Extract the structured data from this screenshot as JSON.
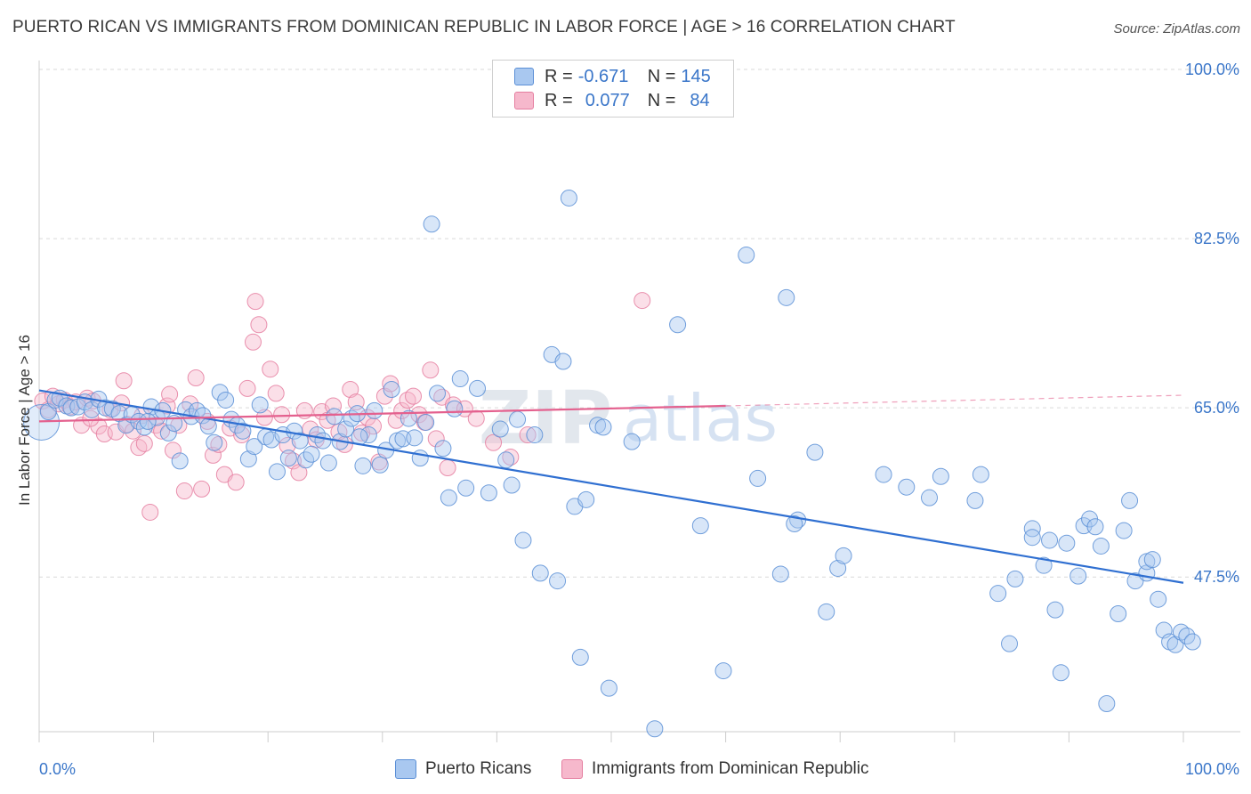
{
  "title": "PUERTO RICAN VS IMMIGRANTS FROM DOMINICAN REPUBLIC IN LABOR FORCE | AGE > 16 CORRELATION CHART",
  "source": "Source: ZipAtlas.com",
  "watermark": {
    "zip": "ZIP",
    "atlas": "atlas"
  },
  "colors": {
    "blue_fill": "#a9c8f0",
    "blue_stroke": "#5b8fd6",
    "blue_line": "#2f6fd1",
    "pink_fill": "#f6b8cc",
    "pink_stroke": "#e57ea0",
    "pink_line": "#e4608e",
    "axis_text": "#3a76c9",
    "grid": "#d9d9d9"
  },
  "legend": {
    "rows": [
      {
        "r_label": "R =",
        "r_value": "-0.671",
        "n_label": "N =",
        "n_value": "145",
        "color": "blue"
      },
      {
        "r_label": "R =",
        "r_value": "0.077",
        "n_label": "N =",
        "n_value": "84",
        "color": "pink"
      }
    ]
  },
  "chart_data": {
    "type": "scatter",
    "xlabel": "",
    "ylabel": "In Labor Force | Age > 16",
    "xlim": [
      0,
      100
    ],
    "ylim": [
      31.5,
      100
    ],
    "x_tick_labels": [
      "0.0%",
      "100.0%"
    ],
    "y_tick_labels": [
      "100.0%",
      "82.5%",
      "65.0%",
      "47.5%"
    ],
    "y_ticks": [
      100,
      82.5,
      65,
      47.5
    ],
    "grid": "horizontal dashed",
    "series": [
      {
        "name": "Puerto Ricans",
        "color": "blue",
        "trend": {
          "x": [
            0,
            100
          ],
          "y": [
            66.8,
            46.9
          ],
          "dashed_from": null
        },
        "points": [
          [
            0.2,
            63.5
          ],
          [
            0.8,
            64.6
          ],
          [
            1.4,
            65.8
          ],
          [
            1.8,
            66.0
          ],
          [
            2.4,
            65.2
          ],
          [
            2.8,
            65.0
          ],
          [
            3.4,
            65.1
          ],
          [
            4.0,
            65.6
          ],
          [
            4.6,
            64.8
          ],
          [
            5.2,
            65.9
          ],
          [
            5.8,
            65.0
          ],
          [
            6.4,
            64.9
          ],
          [
            7.0,
            64.4
          ],
          [
            7.6,
            63.2
          ],
          [
            8.1,
            64.3
          ],
          [
            8.7,
            63.6
          ],
          [
            9.2,
            63.0
          ],
          [
            9.8,
            65.1
          ],
          [
            10.3,
            64.0
          ],
          [
            10.8,
            64.7
          ],
          [
            11.3,
            62.4
          ],
          [
            11.8,
            63.4
          ],
          [
            12.3,
            59.5
          ],
          [
            12.8,
            64.8
          ],
          [
            13.3,
            64.1
          ],
          [
            13.8,
            64.7
          ],
          [
            14.3,
            64.2
          ],
          [
            14.8,
            63.1
          ],
          [
            15.3,
            61.4
          ],
          [
            15.8,
            66.6
          ],
          [
            16.3,
            65.8
          ],
          [
            16.8,
            63.8
          ],
          [
            17.3,
            63.2
          ],
          [
            17.8,
            62.6
          ],
          [
            18.3,
            59.7
          ],
          [
            18.8,
            61.0
          ],
          [
            19.3,
            65.3
          ],
          [
            19.8,
            62.0
          ],
          [
            20.3,
            61.7
          ],
          [
            20.8,
            58.4
          ],
          [
            21.3,
            62.2
          ],
          [
            21.8,
            59.8
          ],
          [
            22.3,
            62.6
          ],
          [
            22.8,
            61.6
          ],
          [
            23.3,
            59.6
          ],
          [
            23.8,
            60.2
          ],
          [
            24.3,
            62.2
          ],
          [
            24.8,
            61.6
          ],
          [
            25.3,
            59.3
          ],
          [
            25.8,
            64.1
          ],
          [
            26.3,
            61.5
          ],
          [
            26.8,
            62.8
          ],
          [
            27.3,
            63.9
          ],
          [
            27.8,
            64.4
          ],
          [
            28.3,
            59.0
          ],
          [
            28.8,
            62.2
          ],
          [
            29.3,
            64.7
          ],
          [
            29.8,
            59.1
          ],
          [
            30.3,
            60.6
          ],
          [
            30.8,
            66.9
          ],
          [
            31.3,
            61.6
          ],
          [
            31.8,
            61.8
          ],
          [
            32.3,
            63.9
          ],
          [
            32.8,
            61.9
          ],
          [
            33.3,
            59.8
          ],
          [
            33.8,
            63.5
          ],
          [
            34.3,
            84.0
          ],
          [
            34.8,
            66.5
          ],
          [
            35.3,
            60.8
          ],
          [
            35.8,
            55.7
          ],
          [
            36.3,
            64.9
          ],
          [
            36.8,
            68.0
          ],
          [
            37.3,
            56.7
          ],
          [
            38.3,
            67.0
          ],
          [
            39.3,
            56.2
          ],
          [
            40.3,
            62.8
          ],
          [
            40.8,
            59.6
          ],
          [
            41.3,
            57.0
          ],
          [
            41.8,
            63.8
          ],
          [
            42.3,
            51.3
          ],
          [
            43.3,
            62.2
          ],
          [
            43.8,
            47.9
          ],
          [
            44.8,
            70.5
          ],
          [
            45.3,
            47.1
          ],
          [
            45.8,
            69.8
          ],
          [
            46.3,
            86.7
          ],
          [
            46.8,
            54.8
          ],
          [
            47.3,
            39.2
          ],
          [
            47.8,
            55.5
          ],
          [
            48.8,
            63.2
          ],
          [
            49.3,
            63.0
          ],
          [
            49.8,
            36.0
          ],
          [
            51.8,
            61.5
          ],
          [
            53.8,
            31.8
          ],
          [
            55.8,
            73.6
          ],
          [
            57.8,
            52.8
          ],
          [
            59.8,
            37.8
          ],
          [
            61.8,
            80.8
          ],
          [
            62.8,
            57.7
          ],
          [
            64.8,
            47.8
          ],
          [
            65.3,
            76.4
          ],
          [
            66.3,
            53.4
          ],
          [
            67.8,
            60.4
          ],
          [
            68.8,
            43.9
          ],
          [
            69.8,
            48.4
          ],
          [
            70.3,
            49.7
          ],
          [
            73.8,
            58.1
          ],
          [
            75.8,
            56.8
          ],
          [
            77.8,
            55.7
          ],
          [
            78.8,
            57.9
          ],
          [
            81.8,
            55.4
          ],
          [
            82.3,
            58.1
          ],
          [
            83.8,
            45.8
          ],
          [
            84.8,
            40.6
          ],
          [
            85.3,
            47.3
          ],
          [
            86.8,
            52.5
          ],
          [
            86.8,
            51.6
          ],
          [
            87.8,
            48.7
          ],
          [
            88.3,
            51.3
          ],
          [
            88.8,
            44.1
          ],
          [
            89.3,
            37.6
          ],
          [
            89.8,
            51.0
          ],
          [
            90.8,
            47.6
          ],
          [
            91.3,
            52.8
          ],
          [
            91.8,
            53.5
          ],
          [
            92.3,
            52.7
          ],
          [
            92.8,
            50.7
          ],
          [
            93.3,
            34.4
          ],
          [
            94.3,
            43.7
          ],
          [
            94.8,
            52.3
          ],
          [
            95.3,
            55.4
          ],
          [
            95.8,
            47.1
          ],
          [
            96.8,
            47.9
          ],
          [
            96.8,
            49.1
          ],
          [
            97.3,
            49.3
          ],
          [
            97.8,
            45.2
          ],
          [
            98.3,
            42.0
          ],
          [
            98.8,
            40.8
          ],
          [
            99.3,
            40.5
          ],
          [
            99.8,
            41.8
          ],
          [
            100.3,
            41.4
          ],
          [
            100.8,
            40.8
          ],
          [
            66.0,
            53.0
          ],
          [
            28.0,
            62.0
          ],
          [
            9.5,
            63.6
          ]
        ]
      },
      {
        "name": "Immigrants from Dominican Republic",
        "color": "pink",
        "trend": {
          "x": [
            0,
            60,
            100
          ],
          "y": [
            63.6,
            65.2,
            66.3
          ],
          "dashed_from": 60
        },
        "points": [
          [
            0.3,
            65.7
          ],
          [
            0.8,
            64.8
          ],
          [
            1.2,
            66.2
          ],
          [
            1.7,
            65.4
          ],
          [
            2.2,
            65.8
          ],
          [
            2.7,
            65.1
          ],
          [
            3.2,
            65.6
          ],
          [
            3.7,
            63.2
          ],
          [
            4.2,
            66.0
          ],
          [
            4.7,
            65.7
          ],
          [
            5.2,
            63.1
          ],
          [
            5.7,
            62.3
          ],
          [
            6.2,
            64.8
          ],
          [
            6.7,
            62.5
          ],
          [
            7.2,
            65.5
          ],
          [
            7.4,
            67.8
          ],
          [
            7.7,
            63.3
          ],
          [
            8.2,
            62.6
          ],
          [
            8.7,
            60.9
          ],
          [
            9.2,
            61.3
          ],
          [
            9.7,
            54.2
          ],
          [
            10.2,
            63.2
          ],
          [
            10.7,
            62.6
          ],
          [
            11.2,
            65.2
          ],
          [
            11.4,
            66.4
          ],
          [
            11.7,
            60.6
          ],
          [
            12.2,
            63.2
          ],
          [
            12.7,
            56.4
          ],
          [
            13.2,
            65.4
          ],
          [
            13.7,
            68.1
          ],
          [
            14.2,
            56.6
          ],
          [
            14.7,
            63.6
          ],
          [
            15.2,
            60.1
          ],
          [
            15.7,
            61.2
          ],
          [
            16.2,
            58.1
          ],
          [
            16.7,
            62.9
          ],
          [
            17.2,
            57.3
          ],
          [
            17.7,
            62.2
          ],
          [
            18.2,
            67.0
          ],
          [
            18.7,
            71.8
          ],
          [
            19.2,
            73.6
          ],
          [
            19.7,
            64.0
          ],
          [
            20.2,
            69.0
          ],
          [
            20.7,
            66.5
          ],
          [
            21.2,
            64.3
          ],
          [
            21.7,
            61.1
          ],
          [
            22.2,
            59.5
          ],
          [
            22.7,
            58.3
          ],
          [
            23.2,
            64.7
          ],
          [
            23.7,
            62.8
          ],
          [
            24.2,
            61.7
          ],
          [
            24.7,
            64.6
          ],
          [
            25.2,
            63.7
          ],
          [
            25.7,
            65.2
          ],
          [
            26.2,
            62.5
          ],
          [
            26.7,
            61.2
          ],
          [
            27.2,
            66.9
          ],
          [
            27.7,
            65.6
          ],
          [
            28.2,
            62.4
          ],
          [
            28.7,
            64.0
          ],
          [
            29.2,
            63.1
          ],
          [
            29.7,
            59.4
          ],
          [
            30.2,
            66.2
          ],
          [
            30.7,
            67.5
          ],
          [
            31.2,
            63.7
          ],
          [
            31.7,
            64.7
          ],
          [
            32.2,
            65.8
          ],
          [
            32.7,
            66.2
          ],
          [
            33.2,
            64.3
          ],
          [
            33.7,
            63.5
          ],
          [
            34.2,
            68.9
          ],
          [
            34.7,
            61.8
          ],
          [
            35.2,
            66.1
          ],
          [
            35.7,
            58.8
          ],
          [
            36.2,
            65.3
          ],
          [
            37.2,
            64.9
          ],
          [
            38.2,
            63.9
          ],
          [
            39.7,
            61.4
          ],
          [
            41.2,
            59.9
          ],
          [
            42.7,
            62.2
          ],
          [
            52.7,
            76.1
          ],
          [
            18.9,
            76.0
          ],
          [
            4.5,
            63.9
          ],
          [
            9.0,
            64.2
          ]
        ]
      }
    ]
  },
  "bottom_legend": [
    "Puerto Ricans",
    "Immigrants from Dominican Republic"
  ]
}
